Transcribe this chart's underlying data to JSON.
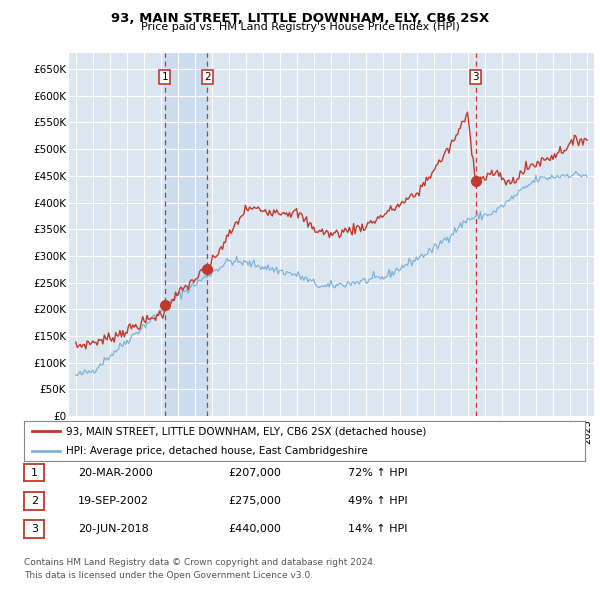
{
  "title": "93, MAIN STREET, LITTLE DOWNHAM, ELY, CB6 2SX",
  "subtitle": "Price paid vs. HM Land Registry's House Price Index (HPI)",
  "ylim": [
    0,
    680000
  ],
  "yticks": [
    0,
    50000,
    100000,
    150000,
    200000,
    250000,
    300000,
    350000,
    400000,
    450000,
    500000,
    550000,
    600000,
    650000
  ],
  "ytick_labels": [
    "£0",
    "£50K",
    "£100K",
    "£150K",
    "£200K",
    "£250K",
    "£300K",
    "£350K",
    "£400K",
    "£450K",
    "£500K",
    "£550K",
    "£600K",
    "£650K"
  ],
  "plot_bg_color": "#dce6f1",
  "grid_color": "#ffffff",
  "red_color": "#c0392b",
  "blue_color": "#7fb3d9",
  "shade_color": "#ccddf0",
  "transactions": [
    {
      "num": 1,
      "date_label": "20-MAR-2000",
      "x": 2000.22,
      "price": 207000,
      "pct": "72%",
      "dir": "↑"
    },
    {
      "num": 2,
      "date_label": "19-SEP-2002",
      "x": 2002.72,
      "price": 275000,
      "pct": "49%",
      "dir": "↑"
    },
    {
      "num": 3,
      "date_label": "20-JUN-2018",
      "x": 2018.47,
      "price": 440000,
      "pct": "14%",
      "dir": "↑"
    }
  ],
  "legend_line1": "93, MAIN STREET, LITTLE DOWNHAM, ELY, CB6 2SX (detached house)",
  "legend_line2": "HPI: Average price, detached house, East Cambridgeshire",
  "footer1": "Contains HM Land Registry data © Crown copyright and database right 2024.",
  "footer2": "This data is licensed under the Open Government Licence v3.0.",
  "table_rows": [
    [
      "1",
      "20-MAR-2000",
      "£207,000",
      "72% ↑ HPI"
    ],
    [
      "2",
      "19-SEP-2002",
      "£275,000",
      "49% ↑ HPI"
    ],
    [
      "3",
      "20-JUN-2018",
      "£440,000",
      "14% ↑ HPI"
    ]
  ]
}
